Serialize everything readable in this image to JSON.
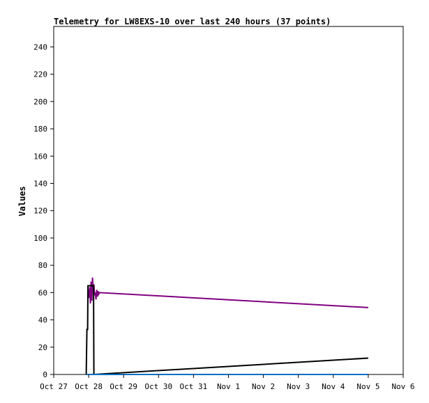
{
  "chart_data": {
    "type": "line",
    "title": "Telemetry for LW8EXS-10 over last 240 hours (37 points)",
    "xlabel": "",
    "ylabel": "Values",
    "x_ticks": [
      "Oct 27",
      "Oct 28",
      "Oct 29",
      "Oct 30",
      "Oct 31",
      "Nov 1",
      "Nov 2",
      "Nov 3",
      "Nov 4",
      "Nov 5",
      "Nov 6"
    ],
    "y_ticks": [
      "0",
      "20",
      "40",
      "60",
      "80",
      "100",
      "120",
      "140",
      "160",
      "180",
      "200",
      "220",
      "240"
    ],
    "xlim": [
      0,
      10
    ],
    "ylim": [
      0,
      255
    ],
    "grid": false,
    "colors": {
      "series_1": "#800080",
      "series_2": "#000000",
      "series_3": "#0070c0"
    },
    "series": [
      {
        "color": "#800080",
        "points": [
          [
            0.99,
            62
          ],
          [
            1.01,
            56
          ],
          [
            1.03,
            64
          ],
          [
            1.05,
            52
          ],
          [
            1.07,
            68
          ],
          [
            1.09,
            54
          ],
          [
            1.11,
            71
          ],
          [
            1.13,
            62
          ],
          [
            1.15,
            66
          ],
          [
            1.17,
            58
          ],
          [
            1.19,
            60
          ],
          [
            1.21,
            55
          ],
          [
            1.23,
            62
          ],
          [
            1.25,
            57
          ],
          [
            1.27,
            61
          ],
          [
            1.29,
            59
          ],
          [
            1.31,
            60
          ],
          [
            9.0,
            49
          ]
        ]
      },
      {
        "color": "#000000",
        "points": [
          [
            0.93,
            0
          ],
          [
            0.95,
            33
          ],
          [
            0.97,
            33
          ],
          [
            0.98,
            65
          ],
          [
            1.14,
            65
          ],
          [
            1.15,
            0
          ],
          [
            9.0,
            12
          ]
        ]
      },
      {
        "color": "#0070c0",
        "points": [
          [
            0.93,
            0
          ],
          [
            9.0,
            0
          ]
        ]
      }
    ]
  }
}
